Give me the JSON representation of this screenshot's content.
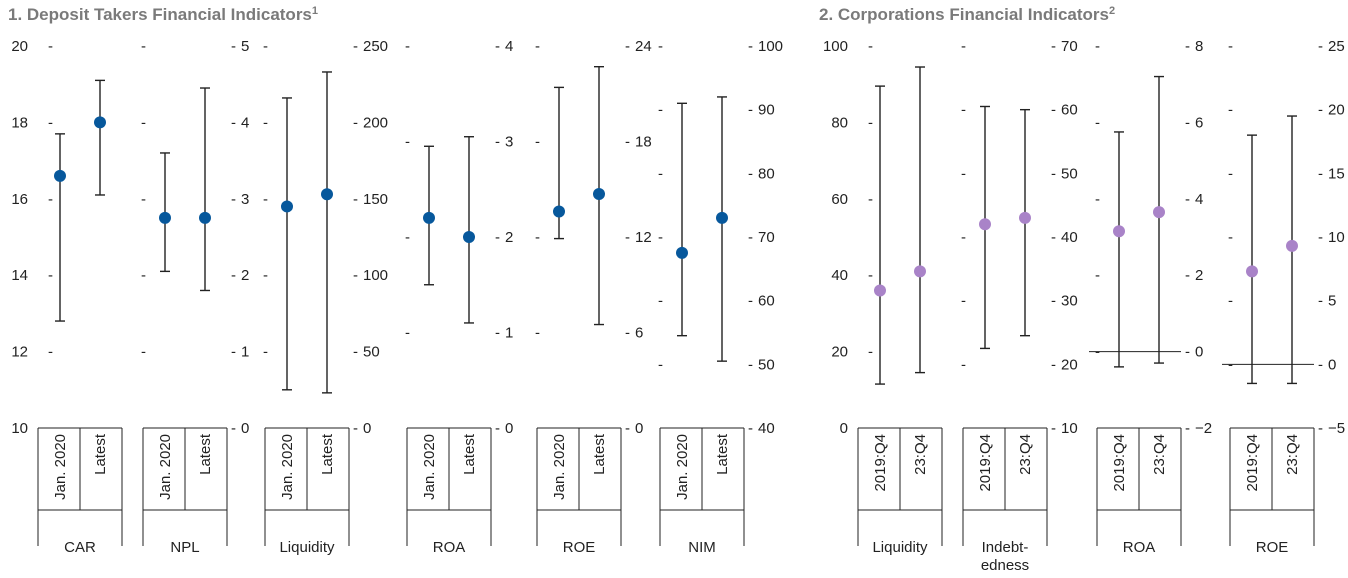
{
  "panels": [
    {
      "title": "1. Deposit Takers Financial Indicators",
      "title_sup": "1",
      "point_color": "#07589c",
      "period_labels": [
        "Jan. 2020",
        "Latest"
      ]
    },
    {
      "title": "2. Corporations Financial Indicators",
      "title_sup": "2",
      "point_color": "#a983c8",
      "period_labels": [
        "2019:Q4",
        "23:Q4"
      ]
    }
  ],
  "chart_data": [
    {
      "type": "range-dot",
      "title": "1. Deposit Takers Financial Indicators",
      "groups": [
        {
          "name": "CAR",
          "label_lines": [
            "CAR"
          ],
          "ylim": [
            10,
            20
          ],
          "ticks": [
            10,
            12,
            14,
            16,
            18,
            20
          ],
          "tick_side": "left",
          "series": [
            {
              "period": "Jan. 2020",
              "low": 12.8,
              "high": 17.7,
              "value": 16.6
            },
            {
              "period": "Latest",
              "low": 16.1,
              "high": 19.1,
              "value": 18.0
            }
          ]
        },
        {
          "name": "NPL",
          "label_lines": [
            "NPL"
          ],
          "ylim": [
            0,
            5
          ],
          "ticks": [
            0,
            1,
            2,
            3,
            4,
            5
          ],
          "tick_side": "right",
          "series": [
            {
              "period": "Jan. 2020",
              "low": 2.05,
              "high": 3.6,
              "value": 2.75
            },
            {
              "period": "Latest",
              "low": 1.8,
              "high": 4.45,
              "value": 2.75
            }
          ]
        },
        {
          "name": "Liquidity",
          "label_lines": [
            "Liquidity"
          ],
          "ylim": [
            0,
            250
          ],
          "ticks": [
            0,
            50,
            100,
            150,
            200,
            250
          ],
          "tick_side": "right",
          "series": [
            {
              "period": "Jan. 2020",
              "low": 25,
              "high": 216,
              "value": 145
            },
            {
              "period": "Latest",
              "low": 23,
              "high": 233,
              "value": 153
            }
          ]
        },
        {
          "name": "ROA",
          "label_lines": [
            "ROA"
          ],
          "ylim": [
            0,
            4
          ],
          "ticks": [
            0,
            1,
            2,
            3,
            4
          ],
          "tick_side": "right",
          "series": [
            {
              "period": "Jan. 2020",
              "low": 1.5,
              "high": 2.95,
              "value": 2.2
            },
            {
              "period": "Latest",
              "low": 1.1,
              "high": 3.05,
              "value": 2.0
            }
          ]
        },
        {
          "name": "ROE",
          "label_lines": [
            "ROE"
          ],
          "ylim": [
            0,
            24
          ],
          "ticks": [
            0,
            6,
            12,
            18,
            24
          ],
          "tick_side": "right",
          "series": [
            {
              "period": "Jan. 2020",
              "low": 11.9,
              "high": 21.4,
              "value": 13.6
            },
            {
              "period": "Latest",
              "low": 6.5,
              "high": 22.7,
              "value": 14.7
            }
          ]
        },
        {
          "name": "NIM",
          "label_lines": [
            "NIM"
          ],
          "ylim": [
            40,
            100
          ],
          "ticks": [
            40,
            50,
            60,
            70,
            80,
            90,
            100
          ],
          "tick_side": "right",
          "series": [
            {
              "period": "Jan. 2020",
              "low": 54.5,
              "high": 91.0,
              "value": 67.5
            },
            {
              "period": "Latest",
              "low": 50.5,
              "high": 92.0,
              "value": 73.0
            }
          ]
        }
      ]
    },
    {
      "type": "range-dot",
      "title": "2. Corporations Financial Indicators",
      "groups": [
        {
          "name": "Liquidity",
          "label_lines": [
            "Liquidity"
          ],
          "ylim": [
            0,
            100
          ],
          "ticks": [
            0,
            20,
            40,
            60,
            80,
            100
          ],
          "tick_side": "left",
          "series": [
            {
              "period": "2019:Q4",
              "low": 11.5,
              "high": 89.5,
              "value": 36
            },
            {
              "period": "23:Q4",
              "low": 14.5,
              "high": 94.5,
              "value": 41
            }
          ]
        },
        {
          "name": "Indebtedness",
          "label_lines": [
            "Indebt-",
            "edness"
          ],
          "ylim": [
            10,
            70
          ],
          "ticks": [
            10,
            20,
            30,
            40,
            50,
            60,
            70
          ],
          "tick_side": "right",
          "series": [
            {
              "period": "2019:Q4",
              "low": 22.5,
              "high": 60.5,
              "value": 42
            },
            {
              "period": "23:Q4",
              "low": 24.5,
              "high": 60.0,
              "value": 43
            }
          ]
        },
        {
          "name": "ROA",
          "label_lines": [
            "ROA"
          ],
          "ylim": [
            -2,
            8
          ],
          "ticks": [
            -2,
            0,
            2,
            4,
            6,
            8
          ],
          "tick_side": "right",
          "series": [
            {
              "period": "2019:Q4",
              "low": -0.4,
              "high": 5.75,
              "value": 3.15
            },
            {
              "period": "23:Q4",
              "low": -0.3,
              "high": 7.2,
              "value": 3.65
            }
          ]
        },
        {
          "name": "ROE",
          "label_lines": [
            "ROE"
          ],
          "ylim": [
            -5,
            25
          ],
          "ticks": [
            -5,
            0,
            5,
            10,
            15,
            20,
            25
          ],
          "tick_side": "right",
          "series": [
            {
              "period": "2019:Q4",
              "low": -1.5,
              "high": 18.0,
              "value": 7.3
            },
            {
              "period": "23:Q4",
              "low": -1.5,
              "high": 19.5,
              "value": 9.3
            }
          ]
        }
      ]
    }
  ]
}
